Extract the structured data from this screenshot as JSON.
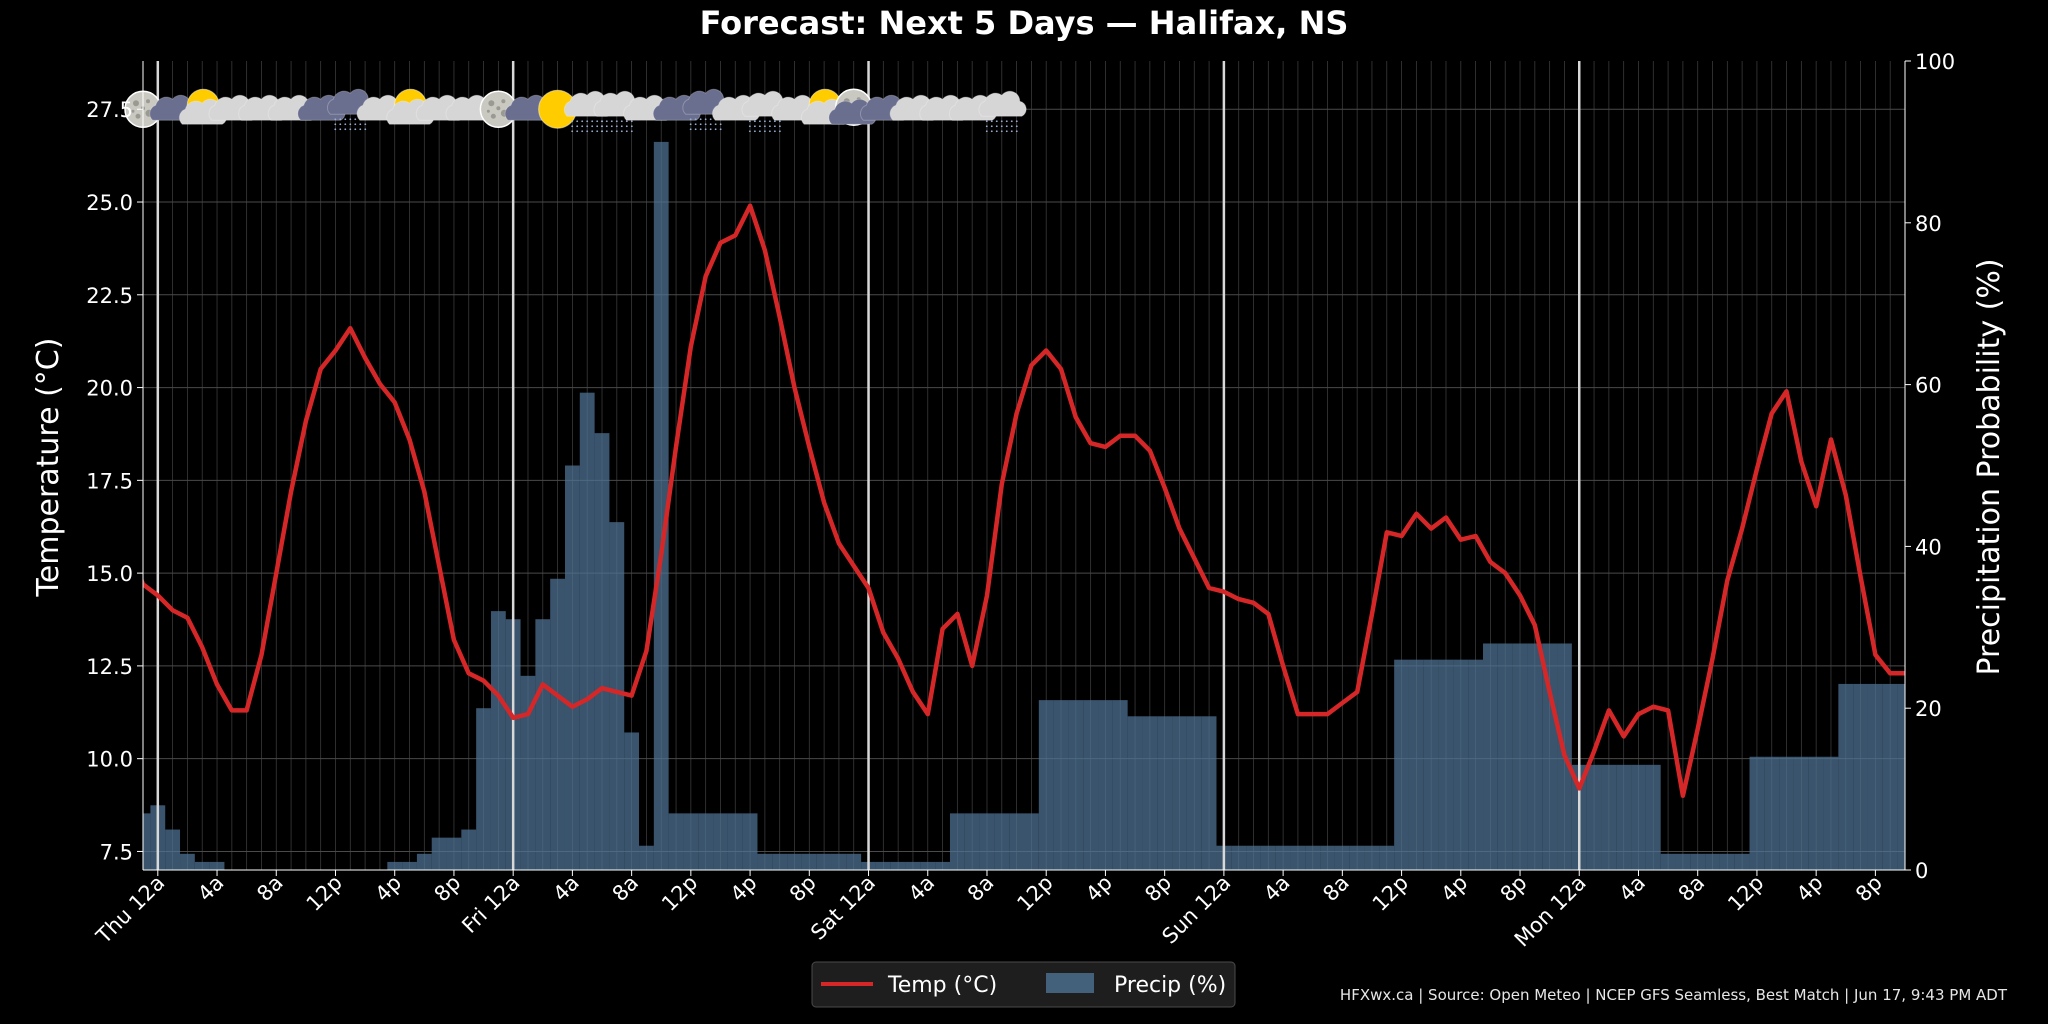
{
  "chart_data": {
    "type": "bar+line",
    "title": "Forecast: Next 5 Days — Halifax, NS",
    "ylabel": "Temperature (°C)",
    "y2label": "Precipitation Probability (%)",
    "ylim": [
      7.0,
      28.8
    ],
    "y2lim": [
      0,
      100
    ],
    "y_ticks": [
      "7.5",
      "10.0",
      "12.5",
      "15.0",
      "17.5",
      "20.0",
      "22.5",
      "25.0",
      "27.5"
    ],
    "y2_ticks": [
      "0",
      "20",
      "40",
      "60",
      "80",
      "100"
    ],
    "x_range": [
      -1,
      118
    ],
    "x_ticks": [
      {
        "x": 0,
        "label": "Thu 12a"
      },
      {
        "x": 4,
        "label": "4a"
      },
      {
        "x": 8,
        "label": "8a"
      },
      {
        "x": 12,
        "label": "12p"
      },
      {
        "x": 16,
        "label": "4p"
      },
      {
        "x": 20,
        "label": "8p"
      },
      {
        "x": 24,
        "label": "Fri 12a"
      },
      {
        "x": 28,
        "label": "4a"
      },
      {
        "x": 32,
        "label": "8a"
      },
      {
        "x": 36,
        "label": "12p"
      },
      {
        "x": 40,
        "label": "4p"
      },
      {
        "x": 44,
        "label": "8p"
      },
      {
        "x": 48,
        "label": "Sat 12a"
      },
      {
        "x": 52,
        "label": "4a"
      },
      {
        "x": 56,
        "label": "8a"
      },
      {
        "x": 60,
        "label": "12p"
      },
      {
        "x": 64,
        "label": "4p"
      },
      {
        "x": 68,
        "label": "8p"
      },
      {
        "x": 72,
        "label": "Sun 12a"
      },
      {
        "x": 76,
        "label": "4a"
      },
      {
        "x": 80,
        "label": "8a"
      },
      {
        "x": 84,
        "label": "12p"
      },
      {
        "x": 88,
        "label": "4p"
      },
      {
        "x": 92,
        "label": "8p"
      },
      {
        "x": 96,
        "label": "Mon 12a"
      },
      {
        "x": 100,
        "label": "4a"
      },
      {
        "x": 104,
        "label": "8a"
      },
      {
        "x": 108,
        "label": "12p"
      },
      {
        "x": 112,
        "label": "4p"
      },
      {
        "x": 116,
        "label": "8p"
      }
    ],
    "day_boundaries": [
      0,
      24,
      48,
      72,
      96
    ],
    "series": [
      {
        "name": "Temp (°C)",
        "type": "line",
        "color": "#d62728",
        "x_start": -2,
        "values": [
          15.8,
          14.7,
          14.4,
          14.0,
          13.8,
          13.0,
          12.0,
          11.3,
          11.3,
          12.8,
          15.0,
          17.2,
          19.1,
          20.5,
          21.0,
          21.6,
          20.8,
          20.1,
          19.6,
          18.6,
          17.2,
          15.2,
          13.2,
          12.3,
          12.1,
          11.7,
          11.1,
          11.2,
          12.0,
          11.7,
          11.4,
          11.6,
          11.9,
          11.8,
          11.7,
          12.9,
          15.5,
          18.4,
          21.1,
          23.0,
          23.9,
          24.1,
          24.9,
          23.7,
          21.9,
          20.0,
          18.4,
          16.9,
          15.8,
          15.2,
          14.6,
          13.4,
          12.7,
          11.8,
          11.2,
          13.5,
          13.9,
          12.5,
          14.4,
          17.4,
          19.3,
          20.6,
          21.0,
          20.5,
          19.2,
          18.5,
          18.4,
          18.7,
          18.7,
          18.3,
          17.3,
          16.2,
          15.4,
          14.6,
          14.5,
          14.3,
          14.2,
          13.9,
          12.5,
          11.2,
          11.2,
          11.2,
          11.5,
          11.8,
          13.9,
          16.1,
          16.0,
          16.6,
          16.2,
          16.5,
          15.9,
          16.0,
          15.3,
          15.0,
          14.4,
          13.6,
          11.8,
          10.1,
          9.2,
          10.2,
          11.3,
          10.6,
          11.2,
          11.4,
          11.3,
          9.0,
          10.8,
          12.7,
          14.8,
          16.2,
          17.8,
          19.3,
          19.9,
          18.0,
          16.8,
          18.6,
          17.1,
          14.9,
          12.8,
          12.3,
          12.3,
          12.3
        ]
      },
      {
        "name": "Precip (%)",
        "type": "bar",
        "color": "#4f7596",
        "x_start": -2,
        "values": [
          11,
          7,
          8,
          5,
          2,
          1,
          1,
          0,
          0,
          0,
          0,
          0,
          0,
          0,
          0,
          0,
          0,
          0,
          1,
          1,
          2,
          4,
          4,
          5,
          20,
          32,
          31,
          24,
          31,
          36,
          50,
          59,
          54,
          43,
          17,
          3,
          90,
          7,
          7,
          7,
          7,
          7,
          7,
          2,
          2,
          2,
          2,
          2,
          2,
          2,
          1,
          1,
          1,
          1,
          1,
          1,
          7,
          7,
          7,
          7,
          7,
          7,
          21,
          21,
          21,
          21,
          21,
          21,
          19,
          19,
          19,
          19,
          19,
          19,
          3,
          3,
          3,
          3,
          3,
          3,
          3,
          3,
          3,
          3,
          3,
          3,
          26,
          26,
          26,
          26,
          26,
          26,
          28,
          28,
          28,
          28,
          28,
          28,
          13,
          13,
          13,
          13,
          13,
          13,
          2,
          2,
          2,
          2,
          2,
          2,
          14,
          14,
          14,
          14,
          14,
          14,
          23,
          23,
          23,
          23,
          23,
          23
        ]
      }
    ],
    "weather_icons": {
      "x_start": -1,
      "step": 2,
      "temp_level": 27.5,
      "names": [
        "moon-icon",
        "cloud-dark-icon",
        "sun-cloud-icon",
        "cloud-icon",
        "cloud-icon",
        "cloud-icon",
        "cloud-dark-icon",
        "rain-cloud-dark-icon",
        "cloud-icon",
        "sun-cloud-icon",
        "cloud-icon",
        "cloud-icon",
        "moon-icon",
        "cloud-dark-icon",
        "sun-icon",
        "rain-cloud-icon",
        "rain-cloud-icon",
        "cloud-icon",
        "cloud-dark-icon",
        "rain-cloud-dark-icon",
        "cloud-icon",
        "rain-cloud-icon",
        "cloud-icon",
        "sun-cloud-icon",
        "moon-cloud-dark-icon",
        "cloud-dark-icon",
        "cloud-icon",
        "cloud-icon",
        "cloud-icon",
        "rain-cloud-icon"
      ]
    },
    "grid": true,
    "legend": {
      "placement": "bottom-center",
      "entries": [
        "Temp (°C)",
        "Precip (%)"
      ]
    },
    "footer": "HFXwx.ca | Source: Open Meteo | NCEP GFS Seamless, Best Match | Jun 17, 9:43 PM ADT",
    "colors": {
      "background": "#000000",
      "temp": "#d62728",
      "precip": "#4f7596",
      "grid": "#4a4a4a",
      "text": "#ffffff"
    }
  }
}
